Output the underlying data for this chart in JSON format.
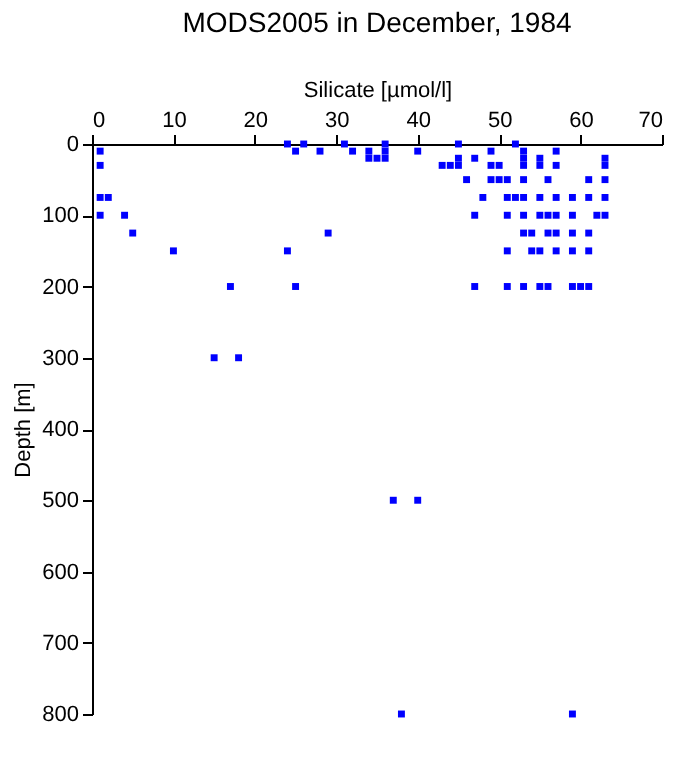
{
  "chart_data": {
    "type": "scatter",
    "title": "MODS2005 in December, 1984",
    "xlabel": "Silicate [µmol/l]",
    "ylabel": "Depth [m]",
    "x": [
      1,
      1,
      1,
      2,
      1,
      4,
      5,
      10,
      15,
      18,
      17,
      24,
      25,
      26,
      28,
      24,
      25,
      29,
      31,
      32,
      34,
      34,
      35,
      36,
      36,
      36,
      40,
      45,
      43,
      44,
      45,
      45,
      47,
      46,
      49,
      49,
      50,
      49,
      50,
      51,
      52,
      53,
      53,
      53,
      53,
      55,
      55,
      56,
      57,
      57,
      48,
      51,
      52,
      53,
      55,
      57,
      59,
      61,
      63,
      63,
      63,
      61,
      63,
      47,
      51,
      53,
      55,
      56,
      57,
      59,
      62,
      63,
      53,
      54,
      56,
      57,
      59,
      61,
      51,
      54,
      55,
      57,
      59,
      61,
      47,
      51,
      53,
      55,
      56,
      59,
      60,
      61,
      37,
      40,
      38,
      59
    ],
    "series": [
      {
        "color": "#0000ff",
        "values": [
          10,
          30,
          75,
          75,
          100,
          100,
          125,
          150,
          300,
          300,
          200,
          0,
          10,
          0,
          10,
          150,
          200,
          125,
          0,
          10,
          10,
          20,
          20,
          0,
          10,
          20,
          10,
          0,
          30,
          30,
          20,
          30,
          20,
          50,
          10,
          30,
          30,
          50,
          50,
          50,
          0,
          10,
          20,
          30,
          50,
          20,
          30,
          50,
          10,
          30,
          75,
          75,
          75,
          75,
          75,
          75,
          75,
          75,
          75,
          20,
          30,
          50,
          50,
          100,
          100,
          100,
          100,
          100,
          100,
          100,
          100,
          100,
          125,
          125,
          125,
          125,
          125,
          125,
          150,
          150,
          150,
          150,
          150,
          150,
          200,
          200,
          200,
          200,
          200,
          200,
          200,
          200,
          500,
          500,
          800,
          800
        ]
      }
    ],
    "xlim": [
      0,
      70
    ],
    "xticks": [
      0,
      10,
      20,
      30,
      40,
      50,
      60,
      70
    ],
    "ylim": [
      800,
      0
    ],
    "yticks": [
      0,
      100,
      200,
      300,
      400,
      500,
      600,
      700,
      800
    ],
    "marker": "square",
    "grid": false
  }
}
